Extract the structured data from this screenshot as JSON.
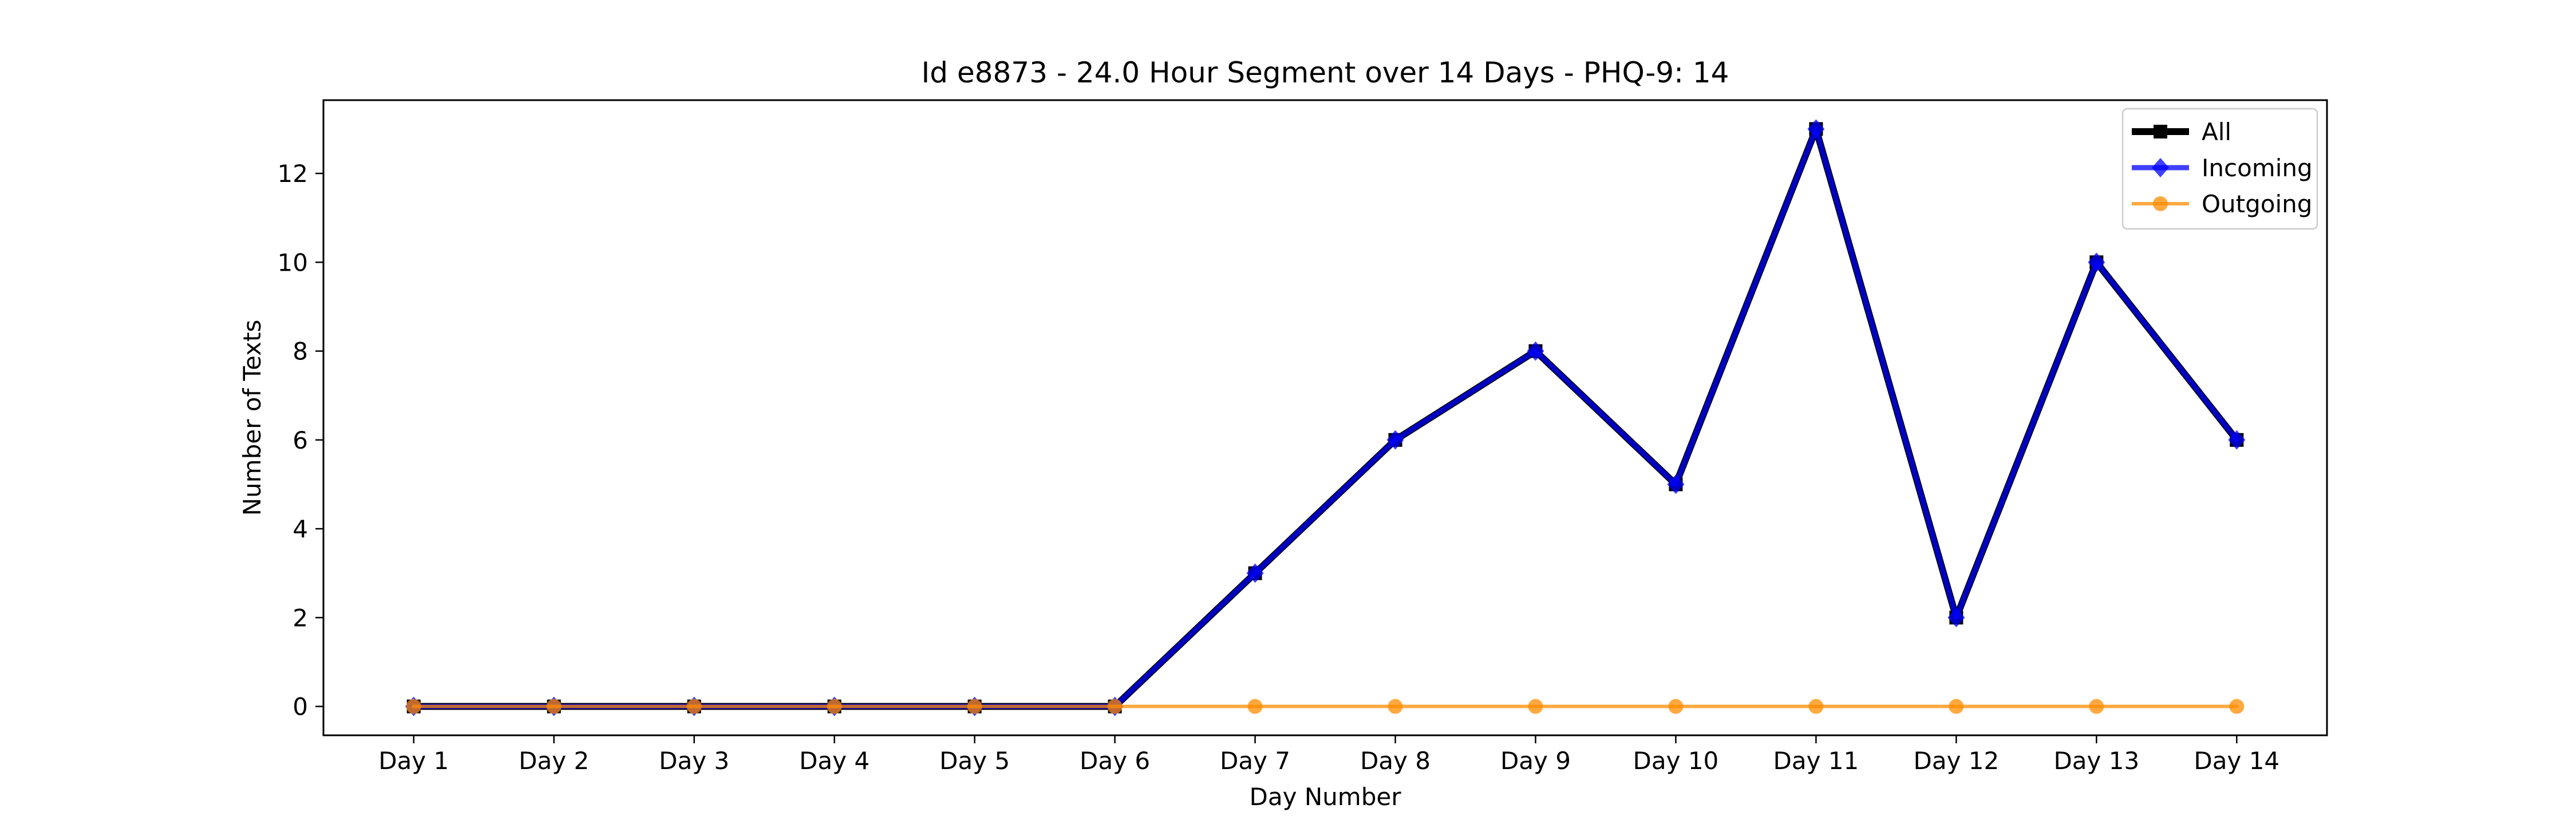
{
  "chart_data": {
    "type": "line",
    "title": "Id e8873 - 24.0 Hour Segment over 14 Days - PHQ-9: 14",
    "xlabel": "Day Number",
    "ylabel": "Number of Texts",
    "categories": [
      "Day 1",
      "Day 2",
      "Day 3",
      "Day 4",
      "Day 5",
      "Day 6",
      "Day 7",
      "Day 8",
      "Day 9",
      "Day 10",
      "Day 11",
      "Day 12",
      "Day 13",
      "Day 14"
    ],
    "yticks": [
      0,
      2,
      4,
      6,
      8,
      10,
      12
    ],
    "ylim": [
      -0.65,
      13.65
    ],
    "grid": false,
    "legend_position": "top-right",
    "series": [
      {
        "name": "All",
        "color": "#000000",
        "marker": "square",
        "values": [
          0,
          0,
          0,
          0,
          0,
          0,
          3,
          6,
          8,
          5,
          13,
          2,
          10,
          6
        ]
      },
      {
        "name": "Incoming",
        "color": "#0000ff",
        "marker": "diamond",
        "values": [
          0,
          0,
          0,
          0,
          0,
          0,
          3,
          6,
          8,
          5,
          13,
          2,
          10,
          6
        ]
      },
      {
        "name": "Outgoing",
        "color": "#ff8c00",
        "marker": "circle",
        "values": [
          0,
          0,
          0,
          0,
          0,
          0,
          0,
          0,
          0,
          0,
          0,
          0,
          0,
          0
        ]
      }
    ]
  }
}
